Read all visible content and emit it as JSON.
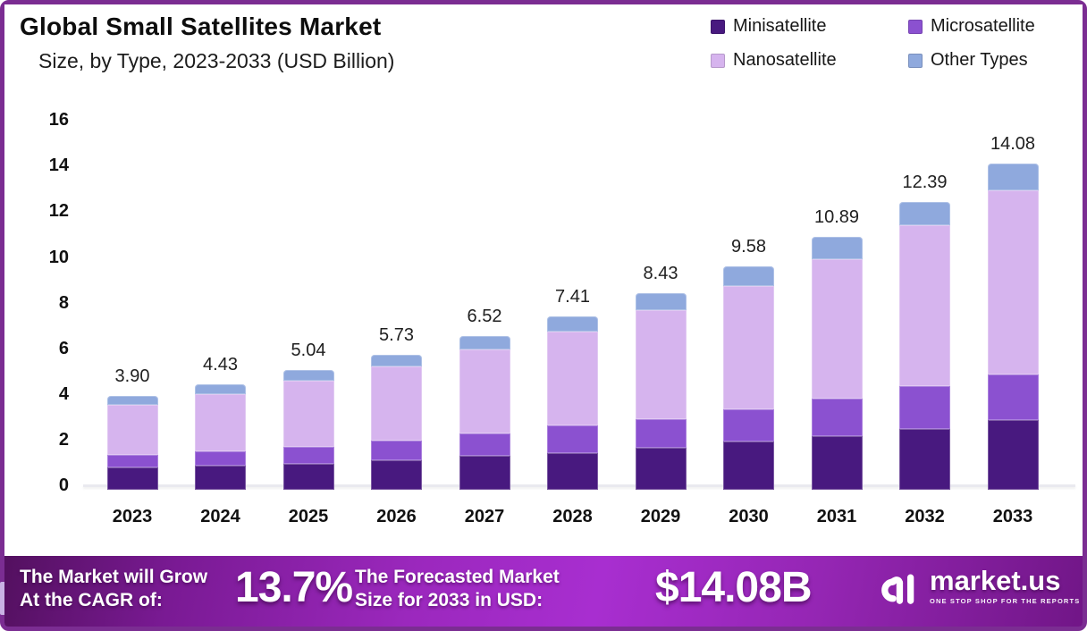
{
  "header": {
    "title": "Global Small Satellites Market",
    "subtitle": "Size, by Type, 2023-2033 (USD Billion)"
  },
  "legend": {
    "items": [
      {
        "label": "Minisatellite",
        "color": "#48197f"
      },
      {
        "label": "Microsatellite",
        "color": "#8b51d0"
      },
      {
        "label": "Nanosatellite",
        "color": "#d6b4ee"
      },
      {
        "label": "Other Types",
        "color": "#8fa9dd"
      }
    ]
  },
  "chart_data": {
    "type": "bar",
    "stacked": true,
    "title": "Global Small Satellites Market Size, by Type, 2023-2033 (USD Billion)",
    "unit": "USD Billion",
    "xlabel": "",
    "ylabel": "",
    "ylim": [
      0,
      16
    ],
    "yticks": [
      0,
      2,
      4,
      6,
      8,
      10,
      12,
      14,
      16
    ],
    "grid": false,
    "legend_position": "top-right",
    "categories": [
      "2023",
      "2024",
      "2025",
      "2026",
      "2027",
      "2028",
      "2029",
      "2030",
      "2031",
      "2032",
      "2033"
    ],
    "series": [
      {
        "name": "Minisatellite",
        "color": "#48197f",
        "values": [
          0.78,
          0.85,
          0.95,
          1.1,
          1.28,
          1.4,
          1.63,
          1.91,
          2.15,
          2.45,
          2.87
        ]
      },
      {
        "name": "Microsatellite",
        "color": "#8b51d0",
        "values": [
          0.55,
          0.65,
          0.75,
          0.86,
          0.98,
          1.21,
          1.27,
          1.41,
          1.63,
          1.88,
          1.98
        ]
      },
      {
        "name": "Nanosatellite",
        "color": "#d6b4ee",
        "values": [
          2.18,
          2.51,
          2.89,
          3.23,
          3.7,
          4.11,
          4.79,
          5.41,
          6.13,
          7.06,
          8.06
        ]
      },
      {
        "name": "Other Types",
        "color": "#8fa9dd",
        "values": [
          0.39,
          0.42,
          0.45,
          0.54,
          0.56,
          0.69,
          0.74,
          0.85,
          0.98,
          1.0,
          1.17
        ]
      }
    ],
    "totals": [
      "3.90",
      "4.43",
      "5.04",
      "5.73",
      "6.52",
      "7.41",
      "8.43",
      "9.58",
      "10.89",
      "12.39",
      "14.08"
    ]
  },
  "banner": {
    "left_line1": "The Market will Grow",
    "left_line2": "At the CAGR of:",
    "cagr": "13.7%",
    "mid_line1": "The Forecasted Market",
    "mid_line2": "Size for 2033 in USD:",
    "forecast": "$14.08B",
    "brand": "market.us",
    "brand_tagline": "ONE STOP SHOP FOR THE REPORTS"
  },
  "colors": {
    "frame_border": "#7b2d92",
    "banner_gradient_center": "#a82ed0",
    "banner_gradient_edge": "#53105f",
    "axis_line": "#eaeaef",
    "text": "#111111"
  }
}
